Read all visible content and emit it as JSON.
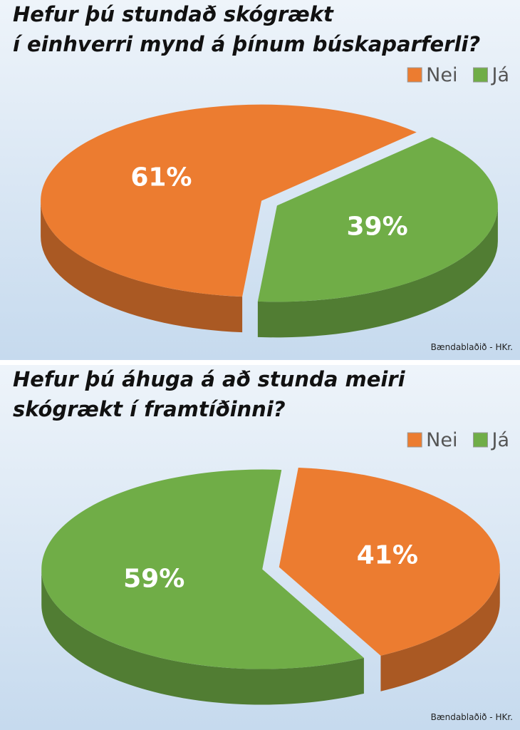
{
  "chart_data": [
    {
      "type": "pie",
      "title": [
        "Hefur þú stundað skógrækt",
        "í einhverri mynd á þínum búskaparferli?"
      ],
      "categories": [
        "Nei",
        "Já"
      ],
      "values": [
        61,
        39
      ],
      "value_labels": [
        "61%",
        "39%"
      ],
      "colors": [
        "#ec7c30",
        "#70ad47"
      ],
      "legend": "upper right",
      "source": "Bændablaðið - HKr."
    },
    {
      "type": "pie",
      "title": [
        "Hefur þú áhuga á að stunda meiri",
        "skógrækt í framtíðinni?"
      ],
      "categories": [
        "Nei",
        "Já"
      ],
      "values": [
        41,
        59
      ],
      "value_labels": [
        "41%",
        "59%"
      ],
      "colors": [
        "#ec7c30",
        "#70ad47"
      ],
      "legend": "upper right",
      "source": "Bændablaðið - HKr."
    }
  ]
}
